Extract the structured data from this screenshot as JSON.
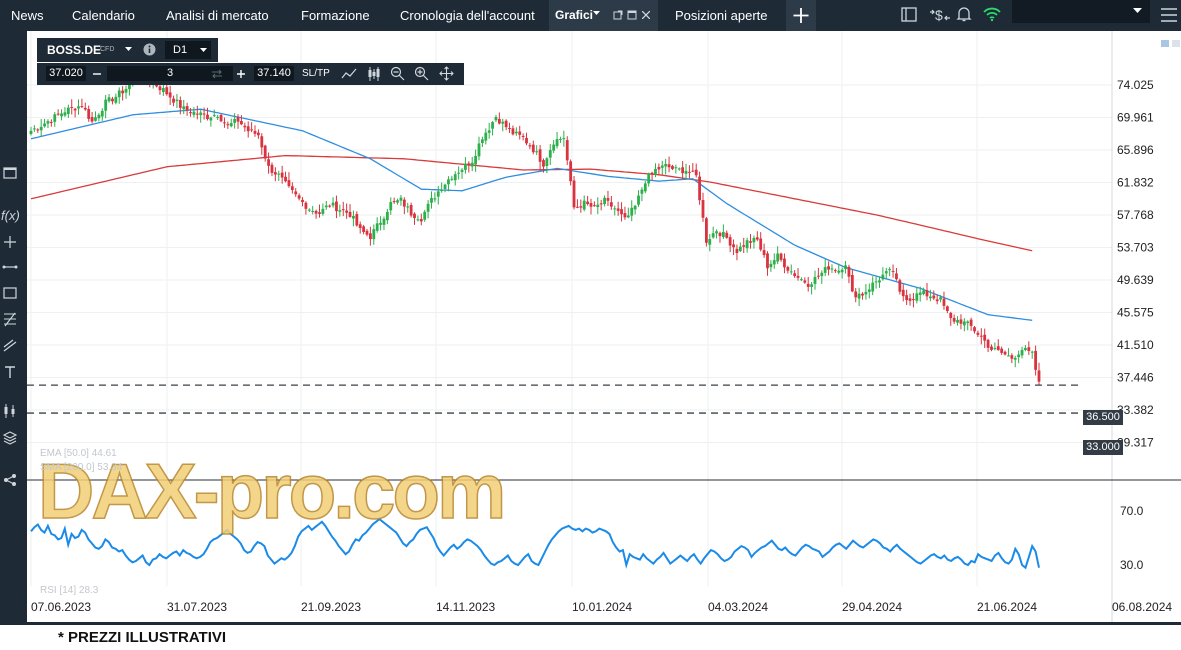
{
  "nav": {
    "tabs": [
      {
        "label": "News"
      },
      {
        "label": "Calendario"
      },
      {
        "label": "Analisi di mercato"
      },
      {
        "label": "Formazione"
      },
      {
        "label": "Cronologia dell'account"
      },
      {
        "label": "Grafici"
      },
      {
        "label": "Posizioni aperte"
      }
    ],
    "add_tab_icon": "plus-icon"
  },
  "instrument": {
    "symbol": "BOSS.DE",
    "type": "CFD",
    "timeframe": "D1"
  },
  "order": {
    "sell_price": "37.020",
    "quantity": "3",
    "buy_price": "37.140",
    "sltp_label": "SL/TP"
  },
  "chart_data": {
    "type": "candlestick",
    "price_axis": [
      "74.025",
      "69.961",
      "65.896",
      "61.832",
      "57.768",
      "53.703",
      "49.639",
      "45.575",
      "41.510",
      "37.446",
      "33.382",
      "29.317"
    ],
    "date_axis": [
      "07.06.2023",
      "31.07.2023",
      "21.09.2023",
      "14.11.2023",
      "10.01.2024",
      "04.03.2024",
      "29.04.2024",
      "21.06.2024",
      "06.08.2024"
    ],
    "horizontal_lines": [
      {
        "price": 36.5,
        "label": "36.500"
      },
      {
        "price": 33.0,
        "label": "33.000"
      }
    ],
    "close_path": [
      [
        0,
        68.3
      ],
      [
        5,
        69.5
      ],
      [
        10,
        70.8
      ],
      [
        15,
        71.5
      ],
      [
        18,
        69.4
      ],
      [
        22,
        71.8
      ],
      [
        25,
        72.6
      ],
      [
        28,
        73.6
      ],
      [
        30,
        75.2
      ],
      [
        33,
        74.7
      ],
      [
        36,
        74.3
      ],
      [
        39,
        73.4
      ],
      [
        42,
        72.2
      ],
      [
        45,
        71.0
      ],
      [
        48,
        70.6
      ],
      [
        52,
        70.1
      ],
      [
        55,
        70.4
      ],
      [
        58,
        68.9
      ],
      [
        61,
        69.6
      ],
      [
        64,
        68.3
      ],
      [
        67,
        67.8
      ],
      [
        70,
        63.7
      ],
      [
        73,
        62.7
      ],
      [
        76,
        61.0
      ],
      [
        79,
        59.7
      ],
      [
        82,
        58.6
      ],
      [
        85,
        58.0
      ],
      [
        88,
        59.1
      ],
      [
        91,
        58.5
      ],
      [
        94,
        57.9
      ],
      [
        97,
        55.8
      ],
      [
        100,
        55.1
      ],
      [
        103,
        57.0
      ],
      [
        106,
        59.2
      ],
      [
        109,
        59.6
      ],
      [
        112,
        58.0
      ],
      [
        115,
        57.4
      ],
      [
        118,
        59.6
      ],
      [
        121,
        61.3
      ],
      [
        124,
        62.7
      ],
      [
        127,
        63.6
      ],
      [
        130,
        64.6
      ],
      [
        133,
        67.6
      ],
      [
        135,
        68.7
      ],
      [
        137,
        70.1
      ],
      [
        139,
        69.2
      ],
      [
        142,
        68.0
      ],
      [
        145,
        67.4
      ],
      [
        148,
        66.0
      ],
      [
        151,
        64.2
      ],
      [
        154,
        67.0
      ],
      [
        157,
        67.5
      ],
      [
        160,
        58.7
      ],
      [
        163,
        59.2
      ],
      [
        166,
        58.6
      ],
      [
        169,
        59.5
      ],
      [
        172,
        58.6
      ],
      [
        175,
        57.1
      ],
      [
        178,
        58.8
      ],
      [
        181,
        62.1
      ],
      [
        184,
        63.4
      ],
      [
        187,
        63.9
      ],
      [
        190,
        63.4
      ],
      [
        193,
        63.4
      ],
      [
        196,
        62.6
      ],
      [
        199,
        54.6
      ],
      [
        202,
        55.9
      ],
      [
        205,
        54.9
      ],
      [
        208,
        53.3
      ],
      [
        211,
        54.4
      ],
      [
        214,
        54.6
      ],
      [
        217,
        51.4
      ],
      [
        220,
        52.6
      ],
      [
        223,
        51.1
      ],
      [
        226,
        50.0
      ],
      [
        229,
        49.2
      ],
      [
        232,
        50.1
      ],
      [
        235,
        51.3
      ],
      [
        238,
        50.9
      ],
      [
        240,
        51.8
      ],
      [
        242,
        47.9
      ],
      [
        245,
        47.9
      ],
      [
        248,
        49.1
      ],
      [
        251,
        50.2
      ],
      [
        254,
        50.8
      ],
      [
        256,
        47.9
      ],
      [
        259,
        47.3
      ],
      [
        262,
        48.0
      ],
      [
        265,
        47.7
      ],
      [
        268,
        47.1
      ],
      [
        271,
        44.7
      ],
      [
        274,
        44.5
      ],
      [
        277,
        43.8
      ],
      [
        280,
        42.5
      ],
      [
        283,
        41.0
      ],
      [
        286,
        40.5
      ],
      [
        289,
        39.9
      ],
      [
        292,
        41.0
      ],
      [
        295,
        40.3
      ],
      [
        297,
        36.6
      ]
    ],
    "overlays": [
      {
        "color": "#2f8ee0",
        "path": [
          [
            0,
            67.3
          ],
          [
            30,
            70.3
          ],
          [
            50,
            71.0
          ],
          [
            80,
            68.3
          ],
          [
            100,
            64.8
          ],
          [
            115,
            61.0
          ],
          [
            127,
            60.8
          ],
          [
            140,
            62.5
          ],
          [
            155,
            63.6
          ],
          [
            170,
            62.6
          ],
          [
            185,
            62.0
          ],
          [
            195,
            62.3
          ],
          [
            205,
            59.2
          ],
          [
            225,
            54.0
          ],
          [
            240,
            51.2
          ],
          [
            262,
            48.6
          ],
          [
            282,
            45.3
          ],
          [
            295,
            44.6
          ]
        ]
      },
      {
        "color": "#d93a3a",
        "path": [
          [
            0,
            59.8
          ],
          [
            40,
            63.8
          ],
          [
            75,
            65.2
          ],
          [
            110,
            64.8
          ],
          [
            145,
            63.4
          ],
          [
            165,
            63.5
          ],
          [
            185,
            62.8
          ],
          [
            200,
            61.9
          ],
          [
            225,
            59.8
          ],
          [
            250,
            57.7
          ],
          [
            280,
            54.7
          ],
          [
            295,
            53.3
          ]
        ]
      }
    ],
    "indicator_legend": [
      "EMA [50.0] 44.61",
      "SMA [200.0] 53.34"
    ],
    "rsi": {
      "label": "RSI [14] 28.3",
      "axis": [
        "70.0",
        "30.0"
      ],
      "values": [
        55,
        58,
        60,
        56,
        54,
        59,
        53,
        52,
        49,
        50,
        57,
        45,
        53,
        50,
        51,
        56,
        54,
        49,
        46,
        43,
        42,
        44,
        49,
        47,
        43,
        42,
        40,
        41,
        37,
        34,
        32,
        33,
        35,
        37,
        32,
        30,
        34,
        35,
        38,
        36,
        35,
        37,
        39,
        40,
        37,
        41,
        39,
        38,
        36,
        35,
        36,
        38,
        42,
        47,
        49,
        50,
        52,
        54,
        56,
        53,
        51,
        49,
        46,
        41,
        39,
        40,
        44,
        47,
        46,
        44,
        37,
        34,
        31,
        33,
        35,
        34,
        36,
        39,
        44,
        51,
        55,
        57,
        59,
        56,
        58,
        60,
        62,
        59,
        55,
        51,
        48,
        44,
        41,
        38,
        40,
        45,
        49,
        48,
        52,
        54,
        57,
        60,
        62,
        64,
        62,
        60,
        58,
        56,
        54,
        50,
        46,
        44,
        47,
        49,
        53,
        56,
        57,
        58,
        54,
        50,
        44,
        40,
        37,
        40,
        43,
        45,
        42,
        44,
        47,
        49,
        48,
        46,
        44,
        41,
        37,
        34,
        31,
        30,
        32,
        33,
        35,
        37,
        33,
        31,
        30,
        33,
        36,
        38,
        33,
        31,
        30,
        35,
        40,
        45,
        49,
        52,
        55,
        57,
        58,
        59,
        57,
        56,
        57,
        55,
        57,
        56,
        54,
        55,
        57,
        56,
        55,
        53,
        47,
        43,
        40,
        41,
        30,
        38,
        36,
        35,
        34,
        38,
        35,
        33,
        31,
        34,
        36,
        39,
        35,
        31,
        33,
        35,
        37,
        35,
        33,
        36,
        38,
        34,
        31,
        35,
        38,
        41,
        40,
        38,
        35,
        33,
        34,
        36,
        40,
        42,
        44,
        43,
        41,
        36,
        39,
        41,
        43,
        44,
        46,
        48,
        45,
        42,
        41,
        43,
        40,
        38,
        37,
        40,
        43,
        45,
        44,
        42,
        41,
        40,
        36,
        38,
        40,
        43,
        45,
        46,
        44,
        42,
        45,
        48,
        46,
        44,
        43,
        45,
        47,
        49,
        48,
        46,
        43,
        42,
        40,
        43,
        45,
        42,
        40,
        38,
        36,
        34,
        32,
        31,
        33,
        35,
        37,
        38,
        36,
        35,
        37,
        34,
        33,
        35,
        36,
        34,
        31,
        30,
        33,
        32,
        38,
        36,
        35,
        34,
        33,
        37,
        39,
        35,
        32,
        31,
        34,
        42,
        38,
        30,
        28,
        36,
        44,
        40,
        28
      ]
    }
  },
  "footnote": "* PREZZI ILLUSTRATIVI",
  "watermark": "DAX-pro.com",
  "colors": {
    "bull": "#2bb04a",
    "bear": "#d9333f",
    "ema": "#2f8ee0",
    "sma": "#d93a3a",
    "rsi": "#1a8be8",
    "toolbar_bg": "#1e2a36"
  }
}
